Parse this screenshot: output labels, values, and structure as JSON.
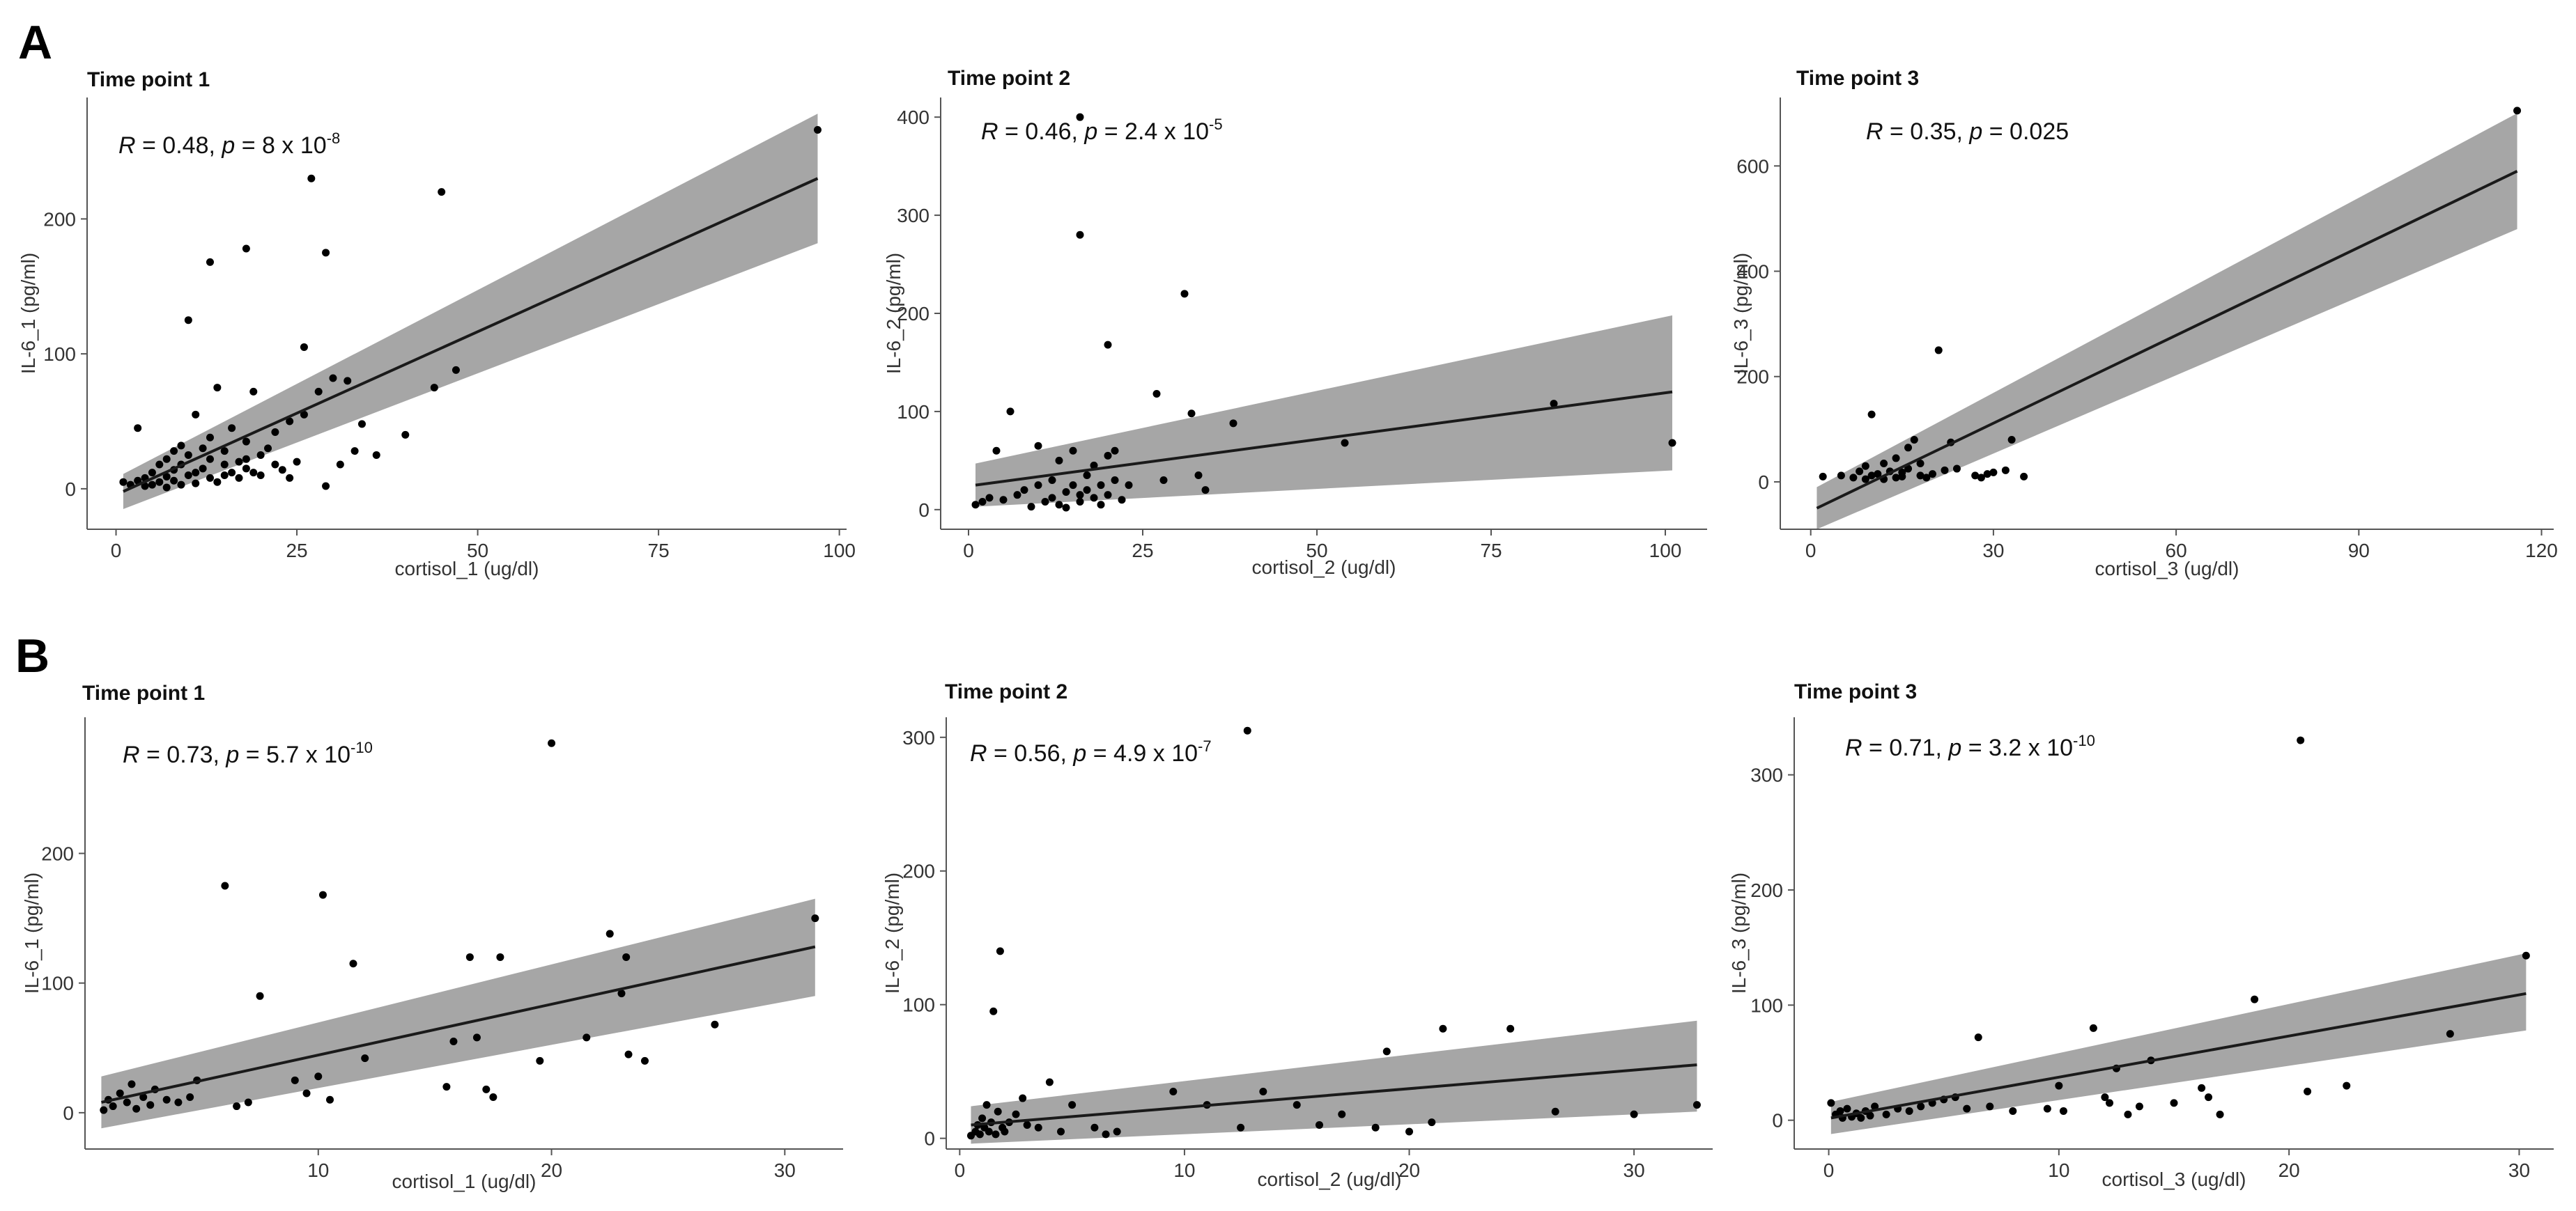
{
  "figure": {
    "panel_labels": [
      "A",
      "B"
    ]
  },
  "colors": {
    "band": "#a6a6a6",
    "line": "#1a1a1a",
    "point": "#000000",
    "axis": "#555555"
  },
  "chart_data": [
    {
      "id": "A1",
      "type": "scatter",
      "title": "Time point 1",
      "xlabel": "cortisol_1 (ug/dl)",
      "ylabel": "IL-6_1 (pg/ml)",
      "xlim": [
        -4,
        101
      ],
      "ylim": [
        -30,
        290
      ],
      "xticks": [
        0,
        25,
        50,
        75,
        100
      ],
      "yticks": [
        0,
        100,
        200
      ],
      "stat": {
        "r_label": "R",
        "r_value": " = 0.48, ",
        "p_label": "p",
        "p_base": " = 8 x 10",
        "p_exp": "-8"
      },
      "fit": {
        "x0": 1,
        "x1": 97,
        "y0": -2,
        "y1": 230,
        "lo1": 182,
        "hi1": 278,
        "wl": 13,
        "wr": 48
      },
      "points": [
        [
          1,
          5
        ],
        [
          2,
          3
        ],
        [
          3,
          6
        ],
        [
          3,
          45
        ],
        [
          4,
          2
        ],
        [
          4,
          8
        ],
        [
          5,
          12
        ],
        [
          5,
          3
        ],
        [
          6,
          18
        ],
        [
          6,
          5
        ],
        [
          7,
          22
        ],
        [
          7,
          9
        ],
        [
          7,
          1
        ],
        [
          8,
          28
        ],
        [
          8,
          14
        ],
        [
          8,
          6
        ],
        [
          9,
          32
        ],
        [
          9,
          18
        ],
        [
          9,
          3
        ],
        [
          10,
          125
        ],
        [
          10,
          25
        ],
        [
          10,
          10
        ],
        [
          11,
          55
        ],
        [
          11,
          12
        ],
        [
          11,
          4
        ],
        [
          12,
          30
        ],
        [
          12,
          15
        ],
        [
          13,
          168
        ],
        [
          13,
          38
        ],
        [
          13,
          22
        ],
        [
          13,
          8
        ],
        [
          14,
          5
        ],
        [
          14,
          75
        ],
        [
          15,
          28
        ],
        [
          15,
          18
        ],
        [
          15,
          10
        ],
        [
          16,
          12
        ],
        [
          16,
          45
        ],
        [
          17,
          20
        ],
        [
          17,
          8
        ],
        [
          18,
          178
        ],
        [
          18,
          35
        ],
        [
          18,
          22
        ],
        [
          18,
          15
        ],
        [
          19,
          72
        ],
        [
          19,
          12
        ],
        [
          20,
          25
        ],
        [
          20,
          10
        ],
        [
          21,
          30
        ],
        [
          22,
          42
        ],
        [
          22,
          18
        ],
        [
          23,
          14
        ],
        [
          24,
          50
        ],
        [
          24,
          8
        ],
        [
          25,
          20
        ],
        [
          26,
          105
        ],
        [
          26,
          55
        ],
        [
          27,
          230
        ],
        [
          28,
          72
        ],
        [
          29,
          2
        ],
        [
          29,
          175
        ],
        [
          30,
          82
        ],
        [
          31,
          18
        ],
        [
          32,
          80
        ],
        [
          33,
          28
        ],
        [
          34,
          48
        ],
        [
          36,
          25
        ],
        [
          40,
          40
        ],
        [
          44,
          75
        ],
        [
          45,
          220
        ],
        [
          47,
          88
        ],
        [
          97,
          266
        ]
      ]
    },
    {
      "id": "A2",
      "type": "scatter",
      "title": "Time point 2",
      "xlabel": "cortisol_2 (ug/dl)",
      "ylabel": "IL-6_2 (pg/ml)",
      "xlim": [
        -4,
        106
      ],
      "ylim": [
        -20,
        420
      ],
      "xticks": [
        0,
        25,
        50,
        75,
        100
      ],
      "yticks": [
        0,
        100,
        200,
        300,
        400
      ],
      "stat": {
        "r_label": "R",
        "r_value": " = 0.46, ",
        "p_label": "p",
        "p_base": " = 2.4 x 10",
        "p_exp": "-5"
      },
      "fit": {
        "x0": 1,
        "x1": 101,
        "y0": 25,
        "y1": 120,
        "lo1": 40,
        "hi1": 198,
        "wl": 22,
        "wr": 18
      },
      "points": [
        [
          1,
          5
        ],
        [
          2,
          8
        ],
        [
          3,
          12
        ],
        [
          4,
          60
        ],
        [
          5,
          10
        ],
        [
          6,
          100
        ],
        [
          7,
          15
        ],
        [
          8,
          20
        ],
        [
          9,
          3
        ],
        [
          10,
          25
        ],
        [
          10,
          65
        ],
        [
          11,
          8
        ],
        [
          12,
          30
        ],
        [
          12,
          12
        ],
        [
          13,
          5
        ],
        [
          13,
          50
        ],
        [
          14,
          18
        ],
        [
          14,
          2
        ],
        [
          15,
          25
        ],
        [
          15,
          60
        ],
        [
          16,
          280
        ],
        [
          16,
          15
        ],
        [
          16,
          8
        ],
        [
          16,
          400
        ],
        [
          17,
          35
        ],
        [
          17,
          20
        ],
        [
          18,
          12
        ],
        [
          18,
          45
        ],
        [
          19,
          5
        ],
        [
          19,
          25
        ],
        [
          20,
          168
        ],
        [
          20,
          55
        ],
        [
          20,
          15
        ],
        [
          21,
          60
        ],
        [
          21,
          30
        ],
        [
          22,
          10
        ],
        [
          23,
          25
        ],
        [
          27,
          118
        ],
        [
          28,
          30
        ],
        [
          31,
          220
        ],
        [
          32,
          98
        ],
        [
          33,
          35
        ],
        [
          34,
          20
        ],
        [
          38,
          88
        ],
        [
          54,
          68
        ],
        [
          84,
          108
        ],
        [
          101,
          68
        ]
      ]
    },
    {
      "id": "A3",
      "type": "scatter",
      "title": "Time point 3",
      "xlabel": "cortisol_3 (ug/dl)",
      "ylabel": "IL-6_3 (pg/ml)",
      "xlim": [
        -5,
        122
      ],
      "ylim": [
        -90,
        730
      ],
      "xticks": [
        0,
        30,
        60,
        90,
        120
      ],
      "yticks": [
        0,
        200,
        400,
        600
      ],
      "stat": {
        "r_label": "R",
        "r_value": " = 0.35, ",
        "p_label": "p",
        "p_base": " = 0.025",
        "p_exp": ""
      },
      "fit": {
        "x0": 1,
        "x1": 116,
        "y0": -50,
        "y1": 590,
        "lo1": 480,
        "hi1": 700,
        "wl": 40,
        "wr": 30
      },
      "points": [
        [
          2,
          10
        ],
        [
          5,
          12
        ],
        [
          7,
          8
        ],
        [
          8,
          20
        ],
        [
          9,
          5
        ],
        [
          9,
          30
        ],
        [
          10,
          128
        ],
        [
          10,
          12
        ],
        [
          11,
          15
        ],
        [
          12,
          5
        ],
        [
          12,
          35
        ],
        [
          13,
          20
        ],
        [
          14,
          8
        ],
        [
          14,
          45
        ],
        [
          15,
          18
        ],
        [
          15,
          10
        ],
        [
          16,
          65
        ],
        [
          16,
          25
        ],
        [
          17,
          80
        ],
        [
          18,
          12
        ],
        [
          18,
          35
        ],
        [
          19,
          8
        ],
        [
          20,
          15
        ],
        [
          21,
          250
        ],
        [
          22,
          22
        ],
        [
          23,
          75
        ],
        [
          24,
          25
        ],
        [
          27,
          12
        ],
        [
          28,
          8
        ],
        [
          29,
          15
        ],
        [
          30,
          18
        ],
        [
          32,
          22
        ],
        [
          33,
          80
        ],
        [
          35,
          10
        ],
        [
          116,
          705
        ]
      ]
    },
    {
      "id": "B1",
      "type": "scatter",
      "title": "Time point 1",
      "xlabel": "cortisol_1 (ug/dl)",
      "ylabel": "IL-6_1 (pg/ml)",
      "xlim": [
        0,
        32.5
      ],
      "ylim": [
        -28,
        305
      ],
      "xticks": [
        10,
        20,
        30
      ],
      "yticks": [
        0,
        100,
        200
      ],
      "stat": {
        "r_label": "R",
        "r_value": " = 0.73, ",
        "p_label": "p",
        "p_base": " = 5.7 x 10",
        "p_exp": "-10"
      },
      "fit": {
        "x0": 0.7,
        "x1": 31.3,
        "y0": 8,
        "y1": 128,
        "lo1": 90,
        "hi1": 165,
        "wl": 20,
        "wr": 38
      },
      "points": [
        [
          0.8,
          2
        ],
        [
          1.0,
          10
        ],
        [
          1.2,
          5
        ],
        [
          1.5,
          15
        ],
        [
          1.8,
          8
        ],
        [
          2.0,
          22
        ],
        [
          2.2,
          3
        ],
        [
          2.5,
          12
        ],
        [
          2.8,
          6
        ],
        [
          3.0,
          18
        ],
        [
          3.5,
          10
        ],
        [
          4.0,
          8
        ],
        [
          4.5,
          12
        ],
        [
          4.8,
          25
        ],
        [
          6.0,
          175
        ],
        [
          6.5,
          5
        ],
        [
          7.0,
          8
        ],
        [
          7.5,
          90
        ],
        [
          9.0,
          25
        ],
        [
          9.5,
          15
        ],
        [
          10.0,
          28
        ],
        [
          10.2,
          168
        ],
        [
          10.5,
          10
        ],
        [
          11.5,
          115
        ],
        [
          12.0,
          42
        ],
        [
          15.5,
          20
        ],
        [
          15.8,
          55
        ],
        [
          16.5,
          120
        ],
        [
          16.8,
          58
        ],
        [
          17.2,
          18
        ],
        [
          17.5,
          12
        ],
        [
          17.8,
          120
        ],
        [
          19.5,
          40
        ],
        [
          20.0,
          285
        ],
        [
          21.5,
          58
        ],
        [
          22.5,
          138
        ],
        [
          23.0,
          92
        ],
        [
          23.2,
          120
        ],
        [
          23.3,
          45
        ],
        [
          24.0,
          40
        ],
        [
          27.0,
          68
        ],
        [
          31.3,
          150
        ]
      ]
    },
    {
      "id": "B2",
      "type": "scatter",
      "title": "Time point 2",
      "xlabel": "cortisol_2 (ug/dl)",
      "ylabel": "IL-6_2 (pg/ml)",
      "xlim": [
        -0.6,
        33.5
      ],
      "ylim": [
        -8,
        315
      ],
      "xticks": [
        0,
        10,
        20,
        30
      ],
      "yticks": [
        0,
        100,
        200,
        300
      ],
      "stat": {
        "r_label": "R",
        "r_value": " = 0.56, ",
        "p_label": "p",
        "p_base": " = 4.9 x 10",
        "p_exp": "-7"
      },
      "fit": {
        "x0": 0.5,
        "x1": 32.8,
        "y0": 10,
        "y1": 55,
        "lo1": 20,
        "hi1": 88,
        "wl": 14,
        "wr": 20
      },
      "points": [
        [
          0.5,
          2
        ],
        [
          0.7,
          5
        ],
        [
          0.8,
          10
        ],
        [
          0.9,
          3
        ],
        [
          1.0,
          15
        ],
        [
          1.1,
          8
        ],
        [
          1.2,
          25
        ],
        [
          1.3,
          5
        ],
        [
          1.4,
          12
        ],
        [
          1.5,
          95
        ],
        [
          1.6,
          3
        ],
        [
          1.7,
          20
        ],
        [
          1.8,
          140
        ],
        [
          1.9,
          8
        ],
        [
          2.0,
          5
        ],
        [
          2.2,
          12
        ],
        [
          2.5,
          18
        ],
        [
          2.8,
          30
        ],
        [
          3.0,
          10
        ],
        [
          3.5,
          8
        ],
        [
          4.0,
          42
        ],
        [
          4.5,
          5
        ],
        [
          5.0,
          25
        ],
        [
          6.0,
          8
        ],
        [
          6.5,
          3
        ],
        [
          7.0,
          5
        ],
        [
          9.5,
          35
        ],
        [
          11.0,
          25
        ],
        [
          12.5,
          8
        ],
        [
          12.8,
          305
        ],
        [
          13.5,
          35
        ],
        [
          15.0,
          25
        ],
        [
          16.0,
          10
        ],
        [
          17.0,
          18
        ],
        [
          18.5,
          8
        ],
        [
          19.0,
          65
        ],
        [
          20.0,
          5
        ],
        [
          21.0,
          12
        ],
        [
          21.5,
          82
        ],
        [
          24.5,
          82
        ],
        [
          26.5,
          20
        ],
        [
          30.0,
          18
        ],
        [
          32.8,
          25
        ]
      ]
    },
    {
      "id": "B3",
      "type": "scatter",
      "title": "Time point 3",
      "xlabel": "cortisol_3 (ug/dl)",
      "ylabel": "IL-6_3 (pg/ml)",
      "xlim": [
        -1.5,
        31.5
      ],
      "ylim": [
        -25,
        350
      ],
      "xticks": [
        0,
        10,
        20,
        30
      ],
      "yticks": [
        0,
        100,
        200,
        300
      ],
      "stat": {
        "r_label": "R",
        "r_value": " = 0.71, ",
        "p_label": "p",
        "p_base": " = 3.2 x 10",
        "p_exp": "-10"
      },
      "fit": {
        "x0": 0.1,
        "x1": 30.3,
        "y0": 2,
        "y1": 110,
        "lo1": 78,
        "hi1": 145,
        "wl": 14,
        "wr": 33
      },
      "points": [
        [
          0.1,
          15
        ],
        [
          0.3,
          5
        ],
        [
          0.5,
          8
        ],
        [
          0.6,
          2
        ],
        [
          0.8,
          10
        ],
        [
          1.0,
          3
        ],
        [
          1.2,
          6
        ],
        [
          1.4,
          2
        ],
        [
          1.6,
          8
        ],
        [
          1.8,
          4
        ],
        [
          2.0,
          12
        ],
        [
          2.5,
          5
        ],
        [
          3.0,
          10
        ],
        [
          3.5,
          8
        ],
        [
          4.0,
          12
        ],
        [
          4.5,
          15
        ],
        [
          5.0,
          18
        ],
        [
          5.5,
          20
        ],
        [
          6.0,
          10
        ],
        [
          6.5,
          72
        ],
        [
          7.0,
          12
        ],
        [
          8.0,
          8
        ],
        [
          9.5,
          10
        ],
        [
          10.0,
          30
        ],
        [
          10.2,
          8
        ],
        [
          11.5,
          80
        ],
        [
          12.0,
          20
        ],
        [
          12.2,
          15
        ],
        [
          12.5,
          45
        ],
        [
          13.0,
          5
        ],
        [
          13.5,
          12
        ],
        [
          14.0,
          52
        ],
        [
          15.0,
          15
        ],
        [
          16.2,
          28
        ],
        [
          16.5,
          20
        ],
        [
          17.0,
          5
        ],
        [
          18.5,
          105
        ],
        [
          20.5,
          330
        ],
        [
          20.8,
          25
        ],
        [
          22.5,
          30
        ],
        [
          27.0,
          75
        ],
        [
          30.3,
          143
        ]
      ]
    }
  ]
}
